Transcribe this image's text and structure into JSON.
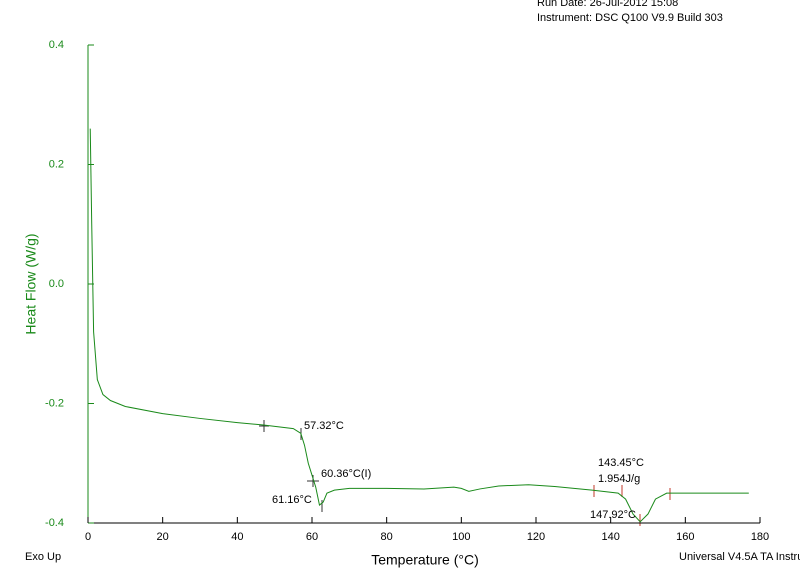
{
  "chart_data": {
    "type": "line",
    "run_date": "Run Date: 26-Jul-2012 15:08",
    "instrument": "Instrument: DSC Q100 V9.9 Build 303",
    "x_label": "Temperature (°C)",
    "y_label": "Heat Flow (W/g)",
    "exo_label": "Exo Up",
    "software": "Universal V4.5A TA Instru",
    "annotations": [
      "57.32°C",
      "60.36°C(I)",
      "61.16°C",
      "143.45°C",
      "1.954J/g",
      "147.92°C"
    ],
    "xlim": [
      0,
      180
    ],
    "xticks": [
      0,
      20,
      40,
      60,
      80,
      100,
      120,
      140,
      160,
      180
    ],
    "ylim": [
      -0.4,
      0.4
    ],
    "yticks": [
      0.4,
      0.2,
      {
        "value": 0,
        "label": "0.0"
      },
      -0.2,
      -0.4
    ],
    "axis_color": "#1a8a1a",
    "x": [
      0.6,
      1.0,
      1.5,
      2.5,
      4,
      6,
      10,
      20,
      30,
      40,
      47,
      55,
      57,
      58,
      59,
      60,
      61,
      62,
      63,
      64,
      66,
      70,
      80,
      90,
      98,
      100,
      102,
      105,
      110,
      118,
      125,
      135,
      142,
      144,
      146,
      147.9,
      150,
      152,
      155,
      160,
      170,
      177
    ],
    "series": [
      {
        "name": "Heat Flow",
        "color": "#1a8a1a",
        "values": [
          0.26,
          0.1,
          -0.08,
          -0.16,
          -0.185,
          -0.195,
          -0.205,
          -0.217,
          -0.225,
          -0.232,
          -0.236,
          -0.242,
          -0.25,
          -0.27,
          -0.3,
          -0.32,
          -0.34,
          -0.37,
          -0.365,
          -0.35,
          -0.345,
          -0.342,
          -0.342,
          -0.343,
          -0.34,
          -0.342,
          -0.347,
          -0.343,
          -0.338,
          -0.336,
          -0.339,
          -0.345,
          -0.35,
          -0.36,
          -0.385,
          -0.398,
          -0.385,
          -0.36,
          -0.35,
          -0.35,
          -0.35,
          -0.35
        ]
      }
    ]
  }
}
